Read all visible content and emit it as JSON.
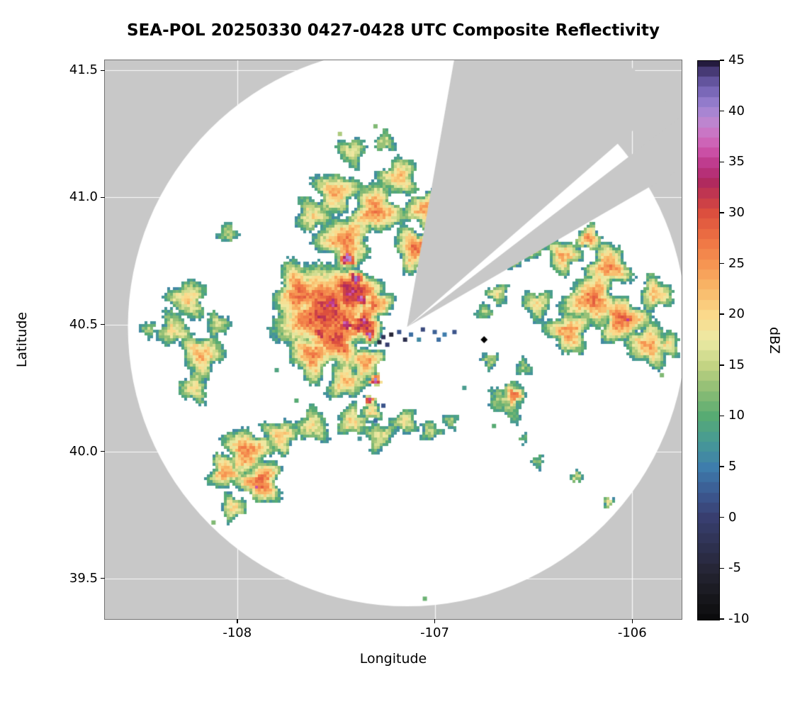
{
  "title": "SEA-POL 20250330 0427-0428 UTC Composite Reflectivity",
  "axes": {
    "xlabel": "Longitude",
    "ylabel": "Latitude",
    "x_ticks": [
      {
        "v": -108,
        "label": "-108"
      },
      {
        "v": -107,
        "label": "-107"
      },
      {
        "v": -106,
        "label": "-106"
      }
    ],
    "y_ticks": [
      {
        "v": 41.5,
        "label": "41.5"
      },
      {
        "v": 41.0,
        "label": "41.0"
      },
      {
        "v": 40.5,
        "label": "40.5"
      },
      {
        "v": 40.0,
        "label": "40.0"
      },
      {
        "v": 39.5,
        "label": "39.5"
      }
    ]
  },
  "colorbar": {
    "label": "dBZ",
    "min": -10,
    "max": 45,
    "ticks": [
      {
        "v": 45,
        "label": "45"
      },
      {
        "v": 40,
        "label": "40"
      },
      {
        "v": 35,
        "label": "35"
      },
      {
        "v": 30,
        "label": "30"
      },
      {
        "v": 25,
        "label": "25"
      },
      {
        "v": 20,
        "label": "20"
      },
      {
        "v": 15,
        "label": "15"
      },
      {
        "v": 10,
        "label": "10"
      },
      {
        "v": 5,
        "label": "5"
      },
      {
        "v": 0,
        "label": "0"
      },
      {
        "v": -5,
        "label": "-5"
      },
      {
        "v": -10,
        "label": "-10"
      }
    ]
  },
  "chart_data": {
    "type": "heatmap",
    "title": "SEA-POL 20250330 0427-0428 UTC Composite Reflectivity",
    "xlabel": "Longitude",
    "ylabel": "Latitude",
    "xlim": [
      -108.67,
      -105.75
    ],
    "ylim": [
      39.34,
      41.54
    ],
    "value_units": "dBZ",
    "value_range": [
      -10,
      45
    ],
    "background_color": "#c8c8c8",
    "grid_color": "#ffffff",
    "radar": {
      "center_lon": -107.14,
      "center_lat": 40.49,
      "range_radius_deg_lat": 1.1,
      "blocked_sectors_deg": [
        [
          10,
          49
        ],
        [
          52.5,
          60
        ]
      ]
    },
    "site_marker": {
      "lon": -106.75,
      "lat": 40.44,
      "shape": "diamond",
      "color": "#000000"
    },
    "colormap_stops": [
      [
        -10,
        "#0b0b0d"
      ],
      [
        -7.5,
        "#19191f"
      ],
      [
        -5,
        "#262637"
      ],
      [
        -2.5,
        "#2f3354"
      ],
      [
        0,
        "#383e6f"
      ],
      [
        2.5,
        "#3c5a92"
      ],
      [
        5,
        "#3e7dac"
      ],
      [
        7.5,
        "#479a96"
      ],
      [
        10,
        "#57ab73"
      ],
      [
        12.5,
        "#8cbc74"
      ],
      [
        15,
        "#c3d483"
      ],
      [
        17.5,
        "#eceba5"
      ],
      [
        20,
        "#fbd98b"
      ],
      [
        22.5,
        "#f9b969"
      ],
      [
        25,
        "#f69552"
      ],
      [
        27.5,
        "#ee7243"
      ],
      [
        30,
        "#dc4f3e"
      ],
      [
        31.5,
        "#c63a4a"
      ],
      [
        33,
        "#b02a5e"
      ],
      [
        34.5,
        "#b93383"
      ],
      [
        36,
        "#ca4fa5"
      ],
      [
        37.5,
        "#cf6fc0"
      ],
      [
        39,
        "#bd85cf"
      ],
      [
        40.5,
        "#9e85d4"
      ],
      [
        42,
        "#7a68b8"
      ],
      [
        43.5,
        "#584a90"
      ],
      [
        45,
        "#241b3e"
      ]
    ],
    "cell_format": [
      "lon",
      "lat",
      "peak_dbz",
      "radius_deg"
    ],
    "cells": [
      [
        -107.55,
        40.55,
        31,
        0.21
      ],
      [
        -107.42,
        40.63,
        34,
        0.12
      ],
      [
        -107.5,
        40.44,
        30,
        0.13
      ],
      [
        -107.68,
        40.62,
        28,
        0.13
      ],
      [
        -107.62,
        40.38,
        26,
        0.11
      ],
      [
        -107.36,
        40.5,
        33,
        0.09
      ],
      [
        -107.3,
        40.58,
        27,
        0.08
      ],
      [
        -107.45,
        40.83,
        26,
        0.13
      ],
      [
        -107.3,
        40.95,
        26,
        0.12
      ],
      [
        -107.5,
        41.02,
        23,
        0.1
      ],
      [
        -107.18,
        41.08,
        22,
        0.09
      ],
      [
        -107.62,
        40.93,
        20,
        0.08
      ],
      [
        -107.42,
        41.18,
        17,
        0.07
      ],
      [
        -107.25,
        41.22,
        16,
        0.05
      ],
      [
        -107.1,
        40.8,
        27,
        0.1
      ],
      [
        -107.05,
        40.95,
        24,
        0.09
      ],
      [
        -107.45,
        40.28,
        22,
        0.09
      ],
      [
        -107.35,
        40.35,
        25,
        0.08
      ],
      [
        -107.52,
        40.58,
        35,
        0.06
      ],
      [
        -107.45,
        40.5,
        36,
        0.05
      ],
      [
        -107.58,
        40.47,
        34,
        0.05
      ],
      [
        -107.44,
        40.76,
        40,
        0.045
      ],
      [
        -107.4,
        40.68,
        41,
        0.04
      ],
      [
        -107.37,
        40.6,
        40,
        0.035
      ],
      [
        -107.36,
        40.52,
        38,
        0.03
      ],
      [
        -107.33,
        40.46,
        39,
        0.035
      ],
      [
        -107.3,
        40.28,
        38,
        0.03
      ],
      [
        -107.33,
        40.2,
        36,
        0.025
      ],
      [
        -108.25,
        40.6,
        21,
        0.09
      ],
      [
        -108.32,
        40.48,
        19,
        0.08
      ],
      [
        -108.18,
        40.38,
        23,
        0.1
      ],
      [
        -108.22,
        40.25,
        19,
        0.07
      ],
      [
        -108.1,
        40.5,
        16,
        0.06
      ],
      [
        -108.45,
        40.48,
        14,
        0.04
      ],
      [
        -108.05,
        40.86,
        15,
        0.05
      ],
      [
        -107.95,
        40.0,
        26,
        0.11
      ],
      [
        -107.88,
        39.88,
        28,
        0.1
      ],
      [
        -108.06,
        39.92,
        24,
        0.08
      ],
      [
        -107.78,
        40.06,
        22,
        0.08
      ],
      [
        -107.62,
        40.1,
        19,
        0.08
      ],
      [
        -108.02,
        39.78,
        20,
        0.06
      ],
      [
        -107.9,
        39.86,
        35,
        0.02
      ],
      [
        -107.42,
        40.12,
        21,
        0.07
      ],
      [
        -107.28,
        40.06,
        18,
        0.07
      ],
      [
        -107.15,
        40.12,
        19,
        0.06
      ],
      [
        -107.02,
        40.08,
        15,
        0.05
      ],
      [
        -106.92,
        40.12,
        13,
        0.04
      ],
      [
        -107.32,
        40.16,
        20,
        0.05
      ],
      [
        -106.6,
        40.22,
        29,
        0.05
      ],
      [
        -106.63,
        40.2,
        15,
        0.09
      ],
      [
        -106.55,
        40.33,
        13,
        0.04
      ],
      [
        -106.72,
        40.36,
        15,
        0.04
      ],
      [
        -106.2,
        40.6,
        27,
        0.13
      ],
      [
        -106.05,
        40.52,
        28,
        0.11
      ],
      [
        -106.32,
        40.47,
        25,
        0.1
      ],
      [
        -106.12,
        40.73,
        26,
        0.1
      ],
      [
        -106.35,
        40.77,
        23,
        0.08
      ],
      [
        -105.92,
        40.42,
        24,
        0.1
      ],
      [
        -105.88,
        40.62,
        22,
        0.08
      ],
      [
        -106.48,
        40.58,
        19,
        0.07
      ],
      [
        -106.22,
        40.84,
        25,
        0.06
      ],
      [
        -106.5,
        40.8,
        20,
        0.05
      ],
      [
        -106.68,
        40.62,
        18,
        0.05
      ],
      [
        -106.75,
        40.55,
        14,
        0.04
      ],
      [
        -106.02,
        40.52,
        33,
        0.035
      ],
      [
        -105.82,
        40.42,
        19,
        0.06
      ],
      [
        -106.6,
        40.75,
        15,
        0.04
      ],
      [
        -106.48,
        39.96,
        13,
        0.03
      ],
      [
        -106.28,
        39.9,
        17,
        0.03
      ],
      [
        -106.12,
        39.8,
        20,
        0.025
      ],
      [
        -106.55,
        40.05,
        11,
        0.025
      ]
    ],
    "speckle_format": [
      "lon",
      "lat",
      "dbz"
    ],
    "speckles": [
      [
        -107.28,
        40.43,
        -4
      ],
      [
        -107.26,
        40.45,
        -2
      ],
      [
        -107.24,
        40.42,
        0
      ],
      [
        -107.22,
        40.46,
        -5
      ],
      [
        -107.18,
        40.47,
        2
      ],
      [
        -107.15,
        40.44,
        -3
      ],
      [
        -107.12,
        40.46,
        4
      ],
      [
        -107.08,
        40.44,
        6
      ],
      [
        -107.06,
        40.48,
        1
      ],
      [
        -107.0,
        40.47,
        3
      ],
      [
        -106.98,
        40.44,
        4
      ],
      [
        -106.95,
        40.46,
        5
      ],
      [
        -106.9,
        40.47,
        2
      ],
      [
        -107.3,
        40.12,
        4
      ],
      [
        -107.26,
        40.18,
        2
      ],
      [
        -107.38,
        40.05,
        7
      ],
      [
        -107.48,
        41.25,
        14
      ],
      [
        -107.3,
        41.28,
        12
      ],
      [
        -107.05,
        39.42,
        11
      ],
      [
        -108.12,
        39.72,
        12
      ],
      [
        -107.7,
        40.2,
        10
      ],
      [
        -107.8,
        40.32,
        9
      ],
      [
        -106.85,
        40.25,
        8
      ],
      [
        -106.7,
        40.1,
        10
      ],
      [
        -105.85,
        40.3,
        12
      ]
    ]
  }
}
